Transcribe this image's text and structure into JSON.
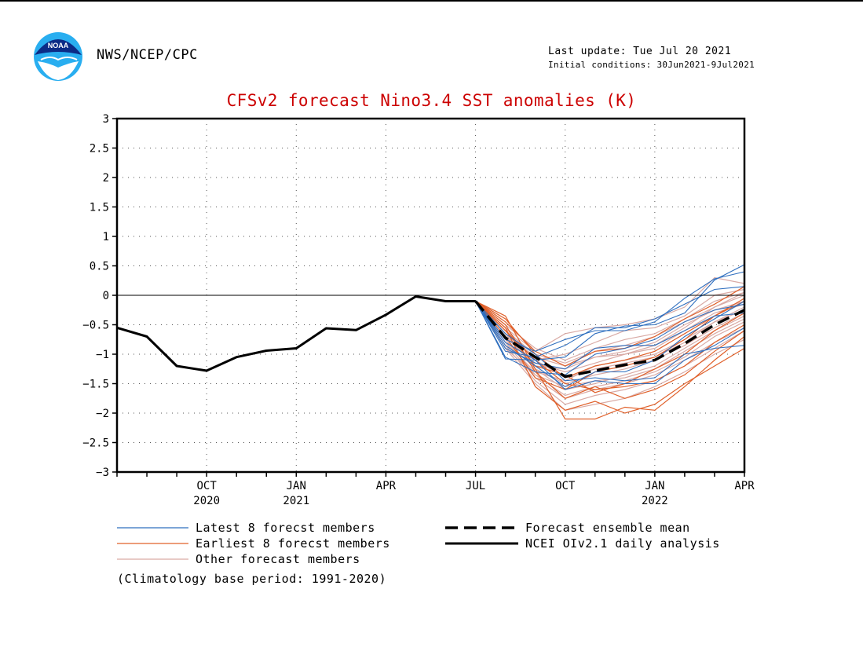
{
  "header": {
    "agency": "NWS/NCEP/CPC",
    "last_update": "Last update: Tue Jul 20 2021",
    "initial_conditions": "Initial conditions: 30Jun2021-9Jul2021",
    "logo_text": "NOAA"
  },
  "footnote": "(Climatology base period: 1991-2020)",
  "colors": {
    "title": "#cc0000",
    "latest": "#2f6fbf",
    "earliest": "#e0602a",
    "other": "#d9aaa5",
    "mean": "#000000",
    "analysis": "#000000"
  },
  "chart_data": {
    "type": "line",
    "title": "CFSv2 forecast Nino3.4 SST anomalies (K)",
    "xlabel": "",
    "ylabel": "",
    "ylim": [
      -3,
      3
    ],
    "yticks": [
      "3",
      "2.5",
      "2",
      "1.5",
      "1",
      "0.5",
      "0",
      "-0.5",
      "-1",
      "-1.5",
      "-2",
      "-2.5",
      "-3"
    ],
    "x_categories": [
      "2020-07",
      "2020-08",
      "2020-09",
      "2020-10",
      "2020-11",
      "2020-12",
      "2021-01",
      "2021-02",
      "2021-03",
      "2021-04",
      "2021-05",
      "2021-06",
      "2021-07",
      "2021-08",
      "2021-09",
      "2021-10",
      "2021-11",
      "2021-12",
      "2022-01",
      "2022-02",
      "2022-03",
      "2022-04"
    ],
    "xtick_labels": [
      {
        "month": "2020-10",
        "line1": "OCT",
        "line2": "2020"
      },
      {
        "month": "2021-01",
        "line1": "JAN",
        "line2": "2021"
      },
      {
        "month": "2021-04",
        "line1": "APR",
        "line2": ""
      },
      {
        "month": "2021-07",
        "line1": "JUL",
        "line2": ""
      },
      {
        "month": "2021-10",
        "line1": "OCT",
        "line2": ""
      },
      {
        "month": "2022-01",
        "line1": "JAN",
        "line2": "2022"
      },
      {
        "month": "2022-04",
        "line1": "APR",
        "line2": ""
      }
    ],
    "grid": true,
    "zero_line": true,
    "legend": {
      "placement": "bottom",
      "entries": [
        {
          "key": "latest",
          "label": "Latest 8 forecst members"
        },
        {
          "key": "earliest",
          "label": "Earliest 8 forecst members"
        },
        {
          "key": "other",
          "label": "Other forecast members"
        },
        {
          "key": "mean",
          "label": "Forecast ensemble mean"
        },
        {
          "key": "analysis",
          "label": "NCEI OIv2.1 daily analysis"
        }
      ]
    },
    "analysis": {
      "name": "NCEI OIv2.1 daily analysis",
      "x": [
        "2020-07",
        "2020-08",
        "2020-09",
        "2020-10",
        "2020-11",
        "2020-12",
        "2021-01",
        "2021-02",
        "2021-03",
        "2021-04",
        "2021-05",
        "2021-06",
        "2021-07"
      ],
      "values": [
        -0.55,
        -0.7,
        -1.2,
        -1.28,
        -1.05,
        -0.94,
        -0.9,
        -0.56,
        -0.59,
        -0.33,
        -0.02,
        -0.1,
        -0.1
      ]
    },
    "forecast_x": [
      "2021-07",
      "2021-08",
      "2021-09",
      "2021-10",
      "2021-11",
      "2021-12",
      "2022-01",
      "2022-02",
      "2022-03",
      "2022-04"
    ],
    "ensemble_mean": {
      "name": "Forecast ensemble mean",
      "values": [
        -0.1,
        -0.72,
        -1.05,
        -1.38,
        -1.28,
        -1.18,
        -1.1,
        -0.82,
        -0.5,
        -0.25
      ]
    },
    "latest_members": [
      [
        -0.1,
        -1.08,
        -1.1,
        -1.05,
        -0.65,
        -0.52,
        -0.5,
        -0.3,
        0.26,
        0.52
      ],
      [
        -0.1,
        -0.75,
        -0.95,
        -0.75,
        -0.6,
        -0.6,
        -0.45,
        -0.05,
        0.28,
        0.4
      ],
      [
        -0.1,
        -0.85,
        -1.2,
        -1.55,
        -1.3,
        -1.3,
        -1.1,
        -0.7,
        -0.4,
        -0.1
      ],
      [
        -0.1,
        -1.05,
        -1.3,
        -1.35,
        -1.0,
        -0.9,
        -0.75,
        -0.45,
        -0.25,
        -0.15
      ],
      [
        -0.1,
        -0.65,
        -1.0,
        -1.45,
        -1.4,
        -1.45,
        -1.4,
        -1.0,
        -0.9,
        -0.85
      ],
      [
        -0.1,
        -0.9,
        -1.15,
        -1.25,
        -0.9,
        -0.85,
        -0.85,
        -0.6,
        -0.35,
        -0.3
      ],
      [
        -0.1,
        -0.8,
        -1.1,
        -1.6,
        -1.45,
        -1.5,
        -1.5,
        -1.1,
        -0.85,
        -0.55
      ],
      [
        -0.1,
        -0.95,
        -1.05,
        -0.85,
        -0.55,
        -0.55,
        -0.4,
        -0.15,
        0.1,
        0.15
      ]
    ],
    "earliest_members": [
      [
        -0.1,
        -0.35,
        -1.25,
        -2.1,
        -2.1,
        -1.9,
        -1.95,
        -1.55,
        -1.1,
        -0.7
      ],
      [
        -0.1,
        -0.55,
        -1.55,
        -1.95,
        -1.8,
        -2.0,
        -1.85,
        -1.5,
        -1.2,
        -0.9
      ],
      [
        -0.1,
        -0.7,
        -1.4,
        -1.6,
        -1.3,
        -1.2,
        -1.05,
        -0.75,
        -0.35,
        -0.05
      ],
      [
        -0.1,
        -0.45,
        -0.95,
        -1.2,
        -0.95,
        -0.9,
        -0.7,
        -0.4,
        -0.15,
        0.15
      ],
      [
        -0.1,
        -0.6,
        -1.1,
        -1.5,
        -1.6,
        -1.55,
        -1.45,
        -1.2,
        -0.8,
        -0.5
      ],
      [
        -0.1,
        -0.5,
        -1.3,
        -1.75,
        -1.55,
        -1.75,
        -1.6,
        -1.35,
        -0.95,
        -0.6
      ],
      [
        -0.1,
        -0.4,
        -1.0,
        -1.4,
        -1.2,
        -1.1,
        -0.95,
        -0.65,
        -0.35,
        -0.1
      ],
      [
        -0.1,
        -0.6,
        -1.2,
        -1.35,
        -1.65,
        -1.5,
        -1.25,
        -1.0,
        -0.6,
        -0.3
      ]
    ],
    "other_members": [
      [
        -0.1,
        -0.55,
        -0.95,
        -0.65,
        -0.55,
        -0.5,
        -0.4,
        -0.2,
        0.3,
        0.2
      ],
      [
        -0.1,
        -0.6,
        -1.1,
        -1.0,
        -0.8,
        -0.6,
        -0.55,
        -0.35,
        0.0,
        0.1
      ],
      [
        -0.1,
        -0.7,
        -1.2,
        -1.25,
        -1.05,
        -0.95,
        -0.8,
        -0.5,
        -0.25,
        -0.1
      ],
      [
        -0.1,
        -0.8,
        -1.3,
        -1.45,
        -1.2,
        -1.1,
        -1.0,
        -0.75,
        -0.45,
        -0.2
      ],
      [
        -0.1,
        -0.65,
        -1.25,
        -1.6,
        -1.5,
        -1.35,
        -1.2,
        -0.9,
        -0.6,
        -0.35
      ],
      [
        -0.1,
        -0.75,
        -1.35,
        -1.7,
        -1.55,
        -1.45,
        -1.3,
        -1.05,
        -0.7,
        -0.45
      ],
      [
        -0.1,
        -0.85,
        -1.45,
        -1.85,
        -1.7,
        -1.6,
        -1.45,
        -1.2,
        -0.9,
        -0.6
      ],
      [
        -0.1,
        -0.9,
        -1.5,
        -1.95,
        -1.85,
        -1.75,
        -1.55,
        -1.3,
        -1.0,
        -0.75
      ],
      [
        -0.1,
        -0.6,
        -1.0,
        -1.15,
        -0.95,
        -0.85,
        -0.7,
        -0.45,
        -0.2,
        0.0
      ],
      [
        -0.1,
        -0.7,
        -1.15,
        -1.3,
        -1.15,
        -1.0,
        -0.9,
        -0.6,
        -0.3,
        -0.15
      ],
      [
        -0.1,
        -0.5,
        -0.9,
        -1.1,
        -0.9,
        -0.75,
        -0.65,
        -0.4,
        -0.1,
        0.05
      ],
      [
        -0.1,
        -0.75,
        -1.25,
        -1.5,
        -1.35,
        -1.25,
        -1.1,
        -0.85,
        -0.55,
        -0.3
      ],
      [
        -0.1,
        -0.8,
        -1.4,
        -1.75,
        -1.6,
        -1.5,
        -1.35,
        -1.1,
        -0.8,
        -0.55
      ],
      [
        -0.1,
        -0.65,
        -1.05,
        -1.2,
        -1.05,
        -1.0,
        -0.85,
        -0.55,
        -0.2,
        0.05
      ],
      [
        -0.1,
        -0.55,
        -1.1,
        -1.4,
        -1.25,
        -1.15,
        -1.05,
        -0.8,
        -0.45,
        -0.25
      ],
      [
        -0.1,
        -0.9,
        -1.35,
        -1.55,
        -1.45,
        -1.4,
        -1.25,
        -0.95,
        -0.65,
        -0.4
      ]
    ]
  }
}
